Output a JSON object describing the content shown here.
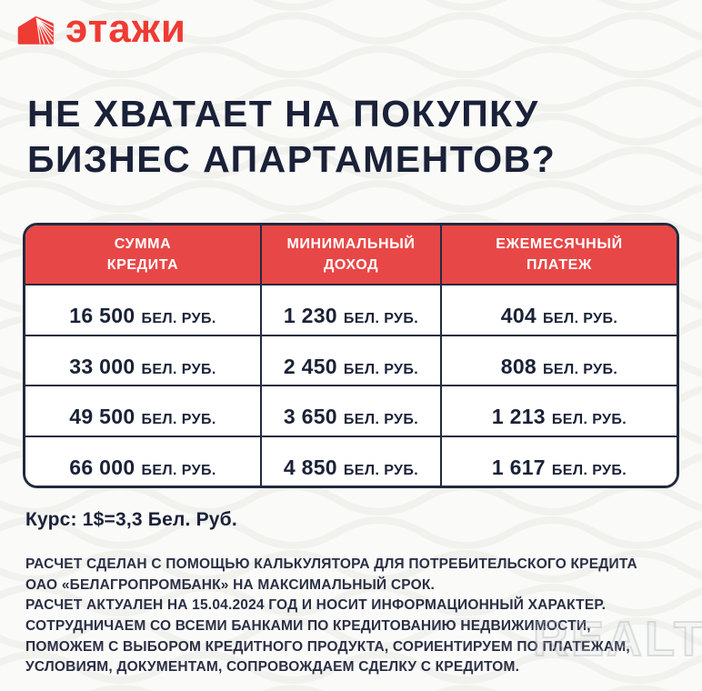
{
  "brand": {
    "logo_text": "этажи"
  },
  "heading": {
    "line1": "НЕ ХВАТАЕТ НА ПОКУПКУ",
    "line2": "БИЗНЕС АПАРТАМЕНТОВ?"
  },
  "table": {
    "headers": [
      {
        "line1": "СУММА",
        "line2": "КРЕДИТА"
      },
      {
        "line1": "МИНИМАЛЬНЫЙ",
        "line2": "ДОХОД"
      },
      {
        "line1": "ЕЖЕМЕСЯЧНЫЙ",
        "line2": "ПЛАТЕЖ"
      }
    ],
    "rows": [
      [
        {
          "amount": "16 500",
          "unit": "БЕЛ. РУБ."
        },
        {
          "amount": "1 230",
          "unit": "БЕЛ. РУБ."
        },
        {
          "amount": "404",
          "unit": "БЕЛ. РУБ."
        }
      ],
      [
        {
          "amount": "33 000",
          "unit": "БЕЛ. РУБ."
        },
        {
          "amount": "2 450",
          "unit": "БЕЛ. РУБ."
        },
        {
          "amount": "808",
          "unit": "БЕЛ. РУБ."
        }
      ],
      [
        {
          "amount": "49 500",
          "unit": "БЕЛ. РУБ."
        },
        {
          "amount": "3 650",
          "unit": "БЕЛ. РУБ."
        },
        {
          "amount": "1 213",
          "unit": "БЕЛ. РУБ."
        }
      ],
      [
        {
          "amount": "66 000",
          "unit": "БЕЛ. РУБ."
        },
        {
          "amount": "4 850",
          "unit": "БЕЛ. РУБ."
        },
        {
          "amount": "1 617",
          "unit": "БЕЛ. РУБ."
        }
      ]
    ]
  },
  "exchange_rate": "Курс: 1$=3,3 Бел. Руб.",
  "disclaimer": {
    "lines": [
      "РАСЧЕТ СДЕЛАН С ПОМОЩЬЮ КАЛЬКУЛЯТОРА ДЛЯ ПОТРЕБИТЕЛЬСКОГО КРЕДИТА",
      "ОАО «БЕЛАГРОПРОМБАНК» НА МАКСИМАЛЬНЫЙ СРОК.",
      "РАСЧЕТ АКТУАЛЕН НА 15.04.2024 ГОД И НОСИТ ИНФОРМАЦИОННЫЙ ХАРАКТЕР.",
      "СОТРУДНИЧАЕМ СО ВСЕМИ БАНКАМИ ПО КРЕДИТОВАНИЮ НЕДВИЖИМОСТИ,",
      "ПОМОЖЕМ С ВЫБОРОМ КРЕДИТНОГО ПРОДУКТА, СОРИЕНТИРУЕМ ПО ПЛАТЕЖАМ,",
      "УСЛОВИЯМ, ДОКУМЕНТАМ, СОПРОВОЖДАЕМ СДЕЛКУ С КРЕДИТОМ."
    ]
  },
  "watermark": "REALT",
  "colors": {
    "brand_red": "#EE3B33",
    "table_header_red": "#E84747",
    "heading_navy": "#1A2138",
    "table_border_navy": "#222A3E",
    "background": "#FAFAF8"
  }
}
